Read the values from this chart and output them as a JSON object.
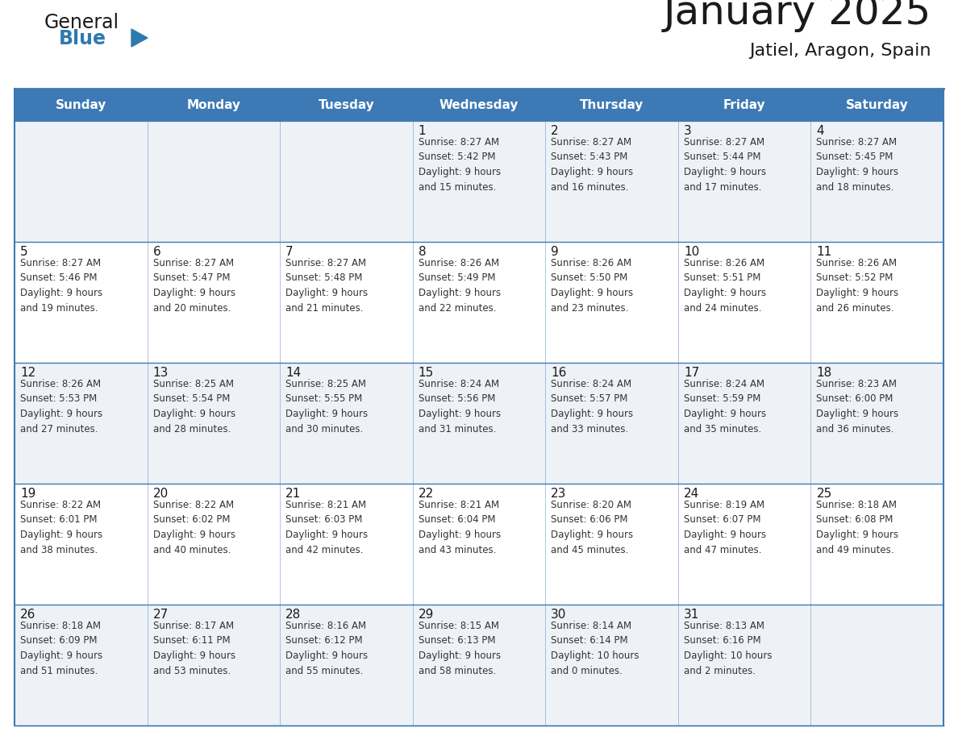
{
  "title": "January 2025",
  "subtitle": "Jatiel, Aragon, Spain",
  "header_color": "#3d7ab5",
  "header_text_color": "#ffffff",
  "cell_bg_even": "#eef2f7",
  "cell_bg_odd": "#ffffff",
  "grid_line_color": "#3d7ab5",
  "text_color": "#1a1a1a",
  "cell_text_color": "#333333",
  "day_names": [
    "Sunday",
    "Monday",
    "Tuesday",
    "Wednesday",
    "Thursday",
    "Friday",
    "Saturday"
  ],
  "logo_color1": "#1a1a1a",
  "logo_color2": "#2d7ab0",
  "title_fontsize": 36,
  "subtitle_fontsize": 16,
  "header_fontsize": 11,
  "day_num_fontsize": 11,
  "cell_text_fontsize": 8.5,
  "calendar": [
    [
      {
        "day": "",
        "text": ""
      },
      {
        "day": "",
        "text": ""
      },
      {
        "day": "",
        "text": ""
      },
      {
        "day": "1",
        "text": "Sunrise: 8:27 AM\nSunset: 5:42 PM\nDaylight: 9 hours\nand 15 minutes."
      },
      {
        "day": "2",
        "text": "Sunrise: 8:27 AM\nSunset: 5:43 PM\nDaylight: 9 hours\nand 16 minutes."
      },
      {
        "day": "3",
        "text": "Sunrise: 8:27 AM\nSunset: 5:44 PM\nDaylight: 9 hours\nand 17 minutes."
      },
      {
        "day": "4",
        "text": "Sunrise: 8:27 AM\nSunset: 5:45 PM\nDaylight: 9 hours\nand 18 minutes."
      }
    ],
    [
      {
        "day": "5",
        "text": "Sunrise: 8:27 AM\nSunset: 5:46 PM\nDaylight: 9 hours\nand 19 minutes."
      },
      {
        "day": "6",
        "text": "Sunrise: 8:27 AM\nSunset: 5:47 PM\nDaylight: 9 hours\nand 20 minutes."
      },
      {
        "day": "7",
        "text": "Sunrise: 8:27 AM\nSunset: 5:48 PM\nDaylight: 9 hours\nand 21 minutes."
      },
      {
        "day": "8",
        "text": "Sunrise: 8:26 AM\nSunset: 5:49 PM\nDaylight: 9 hours\nand 22 minutes."
      },
      {
        "day": "9",
        "text": "Sunrise: 8:26 AM\nSunset: 5:50 PM\nDaylight: 9 hours\nand 23 minutes."
      },
      {
        "day": "10",
        "text": "Sunrise: 8:26 AM\nSunset: 5:51 PM\nDaylight: 9 hours\nand 24 minutes."
      },
      {
        "day": "11",
        "text": "Sunrise: 8:26 AM\nSunset: 5:52 PM\nDaylight: 9 hours\nand 26 minutes."
      }
    ],
    [
      {
        "day": "12",
        "text": "Sunrise: 8:26 AM\nSunset: 5:53 PM\nDaylight: 9 hours\nand 27 minutes."
      },
      {
        "day": "13",
        "text": "Sunrise: 8:25 AM\nSunset: 5:54 PM\nDaylight: 9 hours\nand 28 minutes."
      },
      {
        "day": "14",
        "text": "Sunrise: 8:25 AM\nSunset: 5:55 PM\nDaylight: 9 hours\nand 30 minutes."
      },
      {
        "day": "15",
        "text": "Sunrise: 8:24 AM\nSunset: 5:56 PM\nDaylight: 9 hours\nand 31 minutes."
      },
      {
        "day": "16",
        "text": "Sunrise: 8:24 AM\nSunset: 5:57 PM\nDaylight: 9 hours\nand 33 minutes."
      },
      {
        "day": "17",
        "text": "Sunrise: 8:24 AM\nSunset: 5:59 PM\nDaylight: 9 hours\nand 35 minutes."
      },
      {
        "day": "18",
        "text": "Sunrise: 8:23 AM\nSunset: 6:00 PM\nDaylight: 9 hours\nand 36 minutes."
      }
    ],
    [
      {
        "day": "19",
        "text": "Sunrise: 8:22 AM\nSunset: 6:01 PM\nDaylight: 9 hours\nand 38 minutes."
      },
      {
        "day": "20",
        "text": "Sunrise: 8:22 AM\nSunset: 6:02 PM\nDaylight: 9 hours\nand 40 minutes."
      },
      {
        "day": "21",
        "text": "Sunrise: 8:21 AM\nSunset: 6:03 PM\nDaylight: 9 hours\nand 42 minutes."
      },
      {
        "day": "22",
        "text": "Sunrise: 8:21 AM\nSunset: 6:04 PM\nDaylight: 9 hours\nand 43 minutes."
      },
      {
        "day": "23",
        "text": "Sunrise: 8:20 AM\nSunset: 6:06 PM\nDaylight: 9 hours\nand 45 minutes."
      },
      {
        "day": "24",
        "text": "Sunrise: 8:19 AM\nSunset: 6:07 PM\nDaylight: 9 hours\nand 47 minutes."
      },
      {
        "day": "25",
        "text": "Sunrise: 8:18 AM\nSunset: 6:08 PM\nDaylight: 9 hours\nand 49 minutes."
      }
    ],
    [
      {
        "day": "26",
        "text": "Sunrise: 8:18 AM\nSunset: 6:09 PM\nDaylight: 9 hours\nand 51 minutes."
      },
      {
        "day": "27",
        "text": "Sunrise: 8:17 AM\nSunset: 6:11 PM\nDaylight: 9 hours\nand 53 minutes."
      },
      {
        "day": "28",
        "text": "Sunrise: 8:16 AM\nSunset: 6:12 PM\nDaylight: 9 hours\nand 55 minutes."
      },
      {
        "day": "29",
        "text": "Sunrise: 8:15 AM\nSunset: 6:13 PM\nDaylight: 9 hours\nand 58 minutes."
      },
      {
        "day": "30",
        "text": "Sunrise: 8:14 AM\nSunset: 6:14 PM\nDaylight: 10 hours\nand 0 minutes."
      },
      {
        "day": "31",
        "text": "Sunrise: 8:13 AM\nSunset: 6:16 PM\nDaylight: 10 hours\nand 2 minutes."
      },
      {
        "day": "",
        "text": ""
      }
    ]
  ]
}
